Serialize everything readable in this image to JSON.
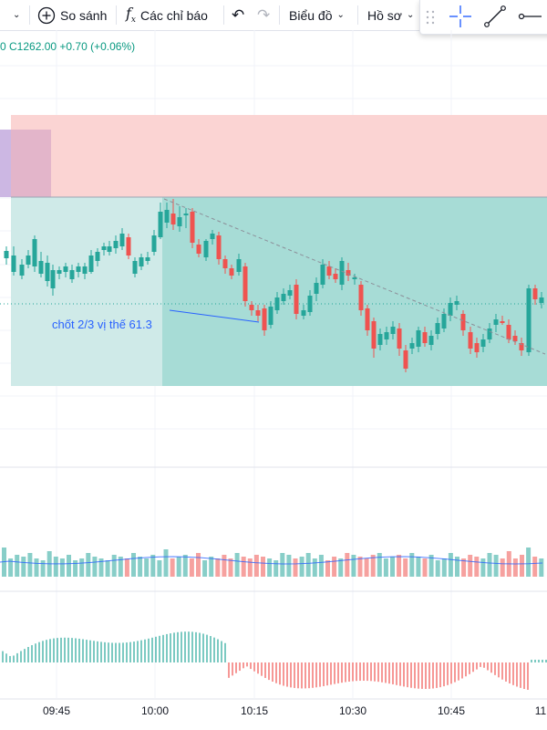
{
  "toolbar": {
    "compare_label": "So sánh",
    "indicators_label": "Các chỉ báo",
    "chart_label": "Biểu đồ",
    "profile_label": "Hồ sơ"
  },
  "legend": {
    "ohlc_text": "0 C1262.00 +0.70 (+0.06%)"
  },
  "annotation": {
    "text": "chốt 2/3 vị thế 61.3"
  },
  "time_axis": {
    "labels": [
      "09:45",
      "10:00",
      "10:15",
      "10:30",
      "10:45",
      "11"
    ]
  },
  "colors": {
    "up": "#26a69a",
    "down": "#ef5350",
    "stop_zone": "#f7c1c0",
    "target_zone": "#a8dcd6",
    "accent": "#2962ff"
  },
  "icons": [
    "chevron-down-icon",
    "plus-circle-icon",
    "fx-icon",
    "undo-icon",
    "redo-icon",
    "drag-handle-icon",
    "crosshair-icon",
    "trend-line-icon",
    "horizontal-ray-icon"
  ]
}
